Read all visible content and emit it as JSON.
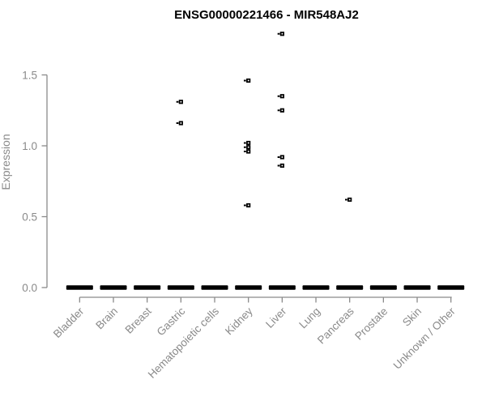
{
  "chart_data": {
    "type": "scatter",
    "title": "ENSG00000221466 - MIR548AJ2",
    "xlabel": "",
    "ylabel": "Expression",
    "ylim": [
      -0.06,
      1.85
    ],
    "y_ticks": [
      0.0,
      0.5,
      1.0,
      1.5
    ],
    "y_tick_labels": [
      "0.0",
      "0.5",
      "1.0",
      "1.5"
    ],
    "categories": [
      "Bladder",
      "Brain",
      "Breast",
      "Gastric",
      "Hematopoietic cells",
      "Kidney",
      "Liver",
      "Lung",
      "Pancreas",
      "Prostate",
      "Skin",
      "Unknown / Other"
    ],
    "zero_clusters": {
      "description": "dense overlapping points at expression 0.0 rendered as a thick black dash for every category",
      "value": 0.0,
      "categories": [
        "Bladder",
        "Brain",
        "Breast",
        "Gastric",
        "Hematopoietic cells",
        "Kidney",
        "Liver",
        "Lung",
        "Pancreas",
        "Prostate",
        "Skin",
        "Unknown / Other"
      ]
    },
    "nonzero_points": [
      {
        "category": "Gastric",
        "value": 1.31
      },
      {
        "category": "Gastric",
        "value": 1.16
      },
      {
        "category": "Kidney",
        "value": 1.46
      },
      {
        "category": "Kidney",
        "value": 1.02
      },
      {
        "category": "Kidney",
        "value": 0.99
      },
      {
        "category": "Kidney",
        "value": 0.96
      },
      {
        "category": "Kidney",
        "value": 0.58
      },
      {
        "category": "Liver",
        "value": 1.79
      },
      {
        "category": "Liver",
        "value": 1.35
      },
      {
        "category": "Liver",
        "value": 1.25
      },
      {
        "category": "Liver",
        "value": 0.92
      },
      {
        "category": "Liver",
        "value": 0.86
      },
      {
        "category": "Pancreas",
        "value": 0.62
      }
    ],
    "marker": "open-square",
    "legend": "none",
    "grid": false,
    "colors": {
      "points": "#000000",
      "axis": "#8a8a8a",
      "title": "#000000",
      "background": "#ffffff"
    }
  }
}
